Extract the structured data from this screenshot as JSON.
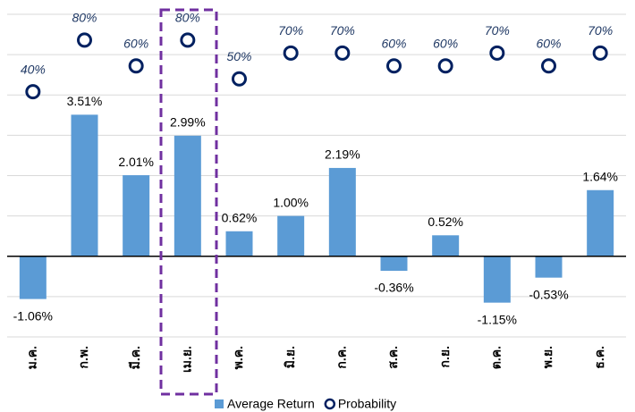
{
  "chart_data": {
    "type": "bar",
    "categories": [
      "ม.ค.",
      "ก.พ.",
      "มี.ค.",
      "เม.ย.",
      "พ.ค.",
      "มิ.ย.",
      "ก.ค.",
      "ส.ค.",
      "ก.ย.",
      "ต.ค.",
      "พ.ย.",
      "ธ.ค."
    ],
    "series": [
      {
        "name": "Average Return",
        "type": "bar",
        "color": "#5b9bd5",
        "values": [
          -1.06,
          3.51,
          2.01,
          2.99,
          0.62,
          1.0,
          2.19,
          -0.36,
          0.52,
          -1.15,
          -0.53,
          1.64
        ],
        "value_labels": [
          "-1.06%",
          "3.51%",
          "2.01%",
          "2.99%",
          "0.62%",
          "1.00%",
          "2.19%",
          "-0.36%",
          "0.52%",
          "-1.15%",
          "-0.53%",
          "1.64%"
        ]
      },
      {
        "name": "Probability",
        "type": "scatter",
        "axis": "y2",
        "color": "#002060",
        "values": [
          40,
          80,
          60,
          80,
          50,
          70,
          70,
          60,
          60,
          70,
          60,
          70
        ],
        "value_labels": [
          "40%",
          "80%",
          "60%",
          "80%",
          "50%",
          "70%",
          "70%",
          "60%",
          "60%",
          "70%",
          "60%",
          "70%"
        ]
      }
    ],
    "ylim": [
      -2,
      6
    ],
    "yticks": [
      -2,
      -1,
      0,
      1,
      2,
      3,
      4,
      5,
      6
    ],
    "y2lim": [
      -150,
      100
    ],
    "grid": true
  }
}
